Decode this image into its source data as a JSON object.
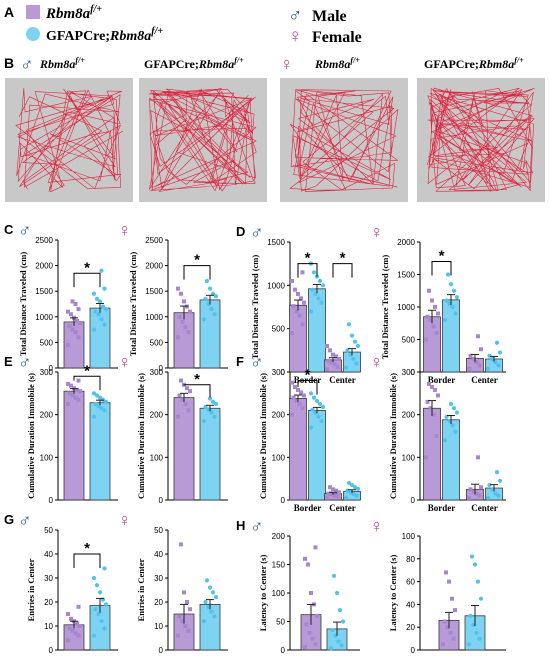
{
  "colors": {
    "rbm8a": "#b79ad6",
    "gfap": "#7ed3f2",
    "male": "#1f5d8c",
    "female": "#c04a9b",
    "track": "#e0223c",
    "arena": "#c8c8c8",
    "star": "#000000"
  },
  "legend": {
    "panel_label": "A",
    "group1": "Rbm8a",
    "group1_sup": "f/+",
    "group2_prefix": "GFAPCre;",
    "group2": "Rbm8a",
    "group2_sup": "f/+",
    "male_symbol": "♂",
    "male_label": "Male",
    "female_symbol": "♀",
    "female_label": "Female"
  },
  "panel_b": {
    "label": "B",
    "male_symbol": "♂",
    "female_symbol": "♀",
    "arenas": [
      {
        "title": "Rbm8a",
        "sup": "f/+",
        "prefix": ""
      },
      {
        "title": "Rbm8a",
        "sup": "f/+",
        "prefix": "GFAPCre;"
      },
      {
        "title": "Rbm8a",
        "sup": "f/+",
        "prefix": ""
      },
      {
        "title": "Rbm8a",
        "sup": "f/+",
        "prefix": "GFAPCre;"
      }
    ]
  },
  "chart_data": [
    {
      "id": "C1",
      "panel_label": "C",
      "sex": "male",
      "type": "bar",
      "ylabel": "Total Distance Traveled (cm)",
      "ylim": [
        0,
        2500
      ],
      "yticks": [
        "0",
        "500",
        "1000",
        "1500",
        "2000",
        "2500"
      ],
      "categories": [
        ""
      ],
      "series": [
        {
          "group": "rbm8a",
          "values": [
            900
          ],
          "error": [
            80
          ],
          "points": [
            [
              450,
              600,
              700,
              750,
              820,
              880,
              920,
              980,
              1050,
              1100,
              1150,
              1250,
              1300
            ]
          ]
        },
        {
          "group": "gfap",
          "values": [
            1170
          ],
          "error": [
            90
          ],
          "points": [
            [
              750,
              850,
              950,
              1050,
              1100,
              1150,
              1200,
              1300,
              1350,
              1450,
              1550,
              1900
            ]
          ]
        }
      ],
      "sig": [
        {
          "between": [
            0,
            1
          ],
          "category": 0,
          "y": 1850,
          "label": "*"
        }
      ]
    },
    {
      "id": "C2",
      "panel_label": "",
      "sex": "female",
      "type": "bar",
      "ylabel": "Total Distance Traveled (cm)",
      "ylim": [
        0,
        2500
      ],
      "yticks": [
        "0",
        "500",
        "1000",
        "1500",
        "2000",
        "2500"
      ],
      "categories": [
        ""
      ],
      "series": [
        {
          "group": "rbm8a",
          "values": [
            1080
          ],
          "error": [
            130
          ],
          "points": [
            [
              600,
              700,
              800,
              900,
              1000,
              1100,
              1200,
              1300,
              1450,
              1550
            ]
          ]
        },
        {
          "group": "gfap",
          "values": [
            1330
          ],
          "error": [
            90
          ],
          "points": [
            [
              950,
              1050,
              1150,
              1250,
              1350,
              1400,
              1450,
              1550,
              1700
            ]
          ]
        }
      ],
      "sig": [
        {
          "between": [
            0,
            1
          ],
          "category": 0,
          "y": 2000,
          "label": "*"
        }
      ]
    },
    {
      "id": "D1",
      "panel_label": "D",
      "sex": "male",
      "type": "bar",
      "ylabel": "Total Distance Traveled (cm)",
      "ylim": [
        0,
        1500
      ],
      "yticks": [
        "0",
        "500",
        "1000",
        "1500"
      ],
      "categories": [
        "Border",
        "Center"
      ],
      "series": [
        {
          "group": "rbm8a",
          "values": [
            770,
            140
          ],
          "error": [
            60,
            25
          ],
          "points": [
            [
              450,
              550,
              650,
              700,
              760,
              800,
              850,
              900,
              950,
              1050,
              1150
            ],
            [
              30,
              60,
              90,
              110,
              130,
              150,
              180,
              200,
              250,
              300
            ]
          ]
        },
        {
          "group": "gfap",
          "values": [
            960,
            230
          ],
          "error": [
            50,
            40
          ],
          "points": [
            [
              700,
              800,
              850,
              900,
              950,
              1000,
              1050,
              1100,
              1150,
              1250
            ],
            [
              50,
              100,
              150,
              200,
              250,
              300,
              350,
              420,
              550
            ]
          ]
        }
      ],
      "sig": [
        {
          "between": [
            0,
            1
          ],
          "category": 0,
          "y": 1250,
          "label": "*"
        },
        {
          "between": [
            0,
            1
          ],
          "category": 1,
          "y": 1250,
          "label": "*"
        }
      ]
    },
    {
      "id": "D2",
      "panel_label": "",
      "sex": "female",
      "type": "bar",
      "ylabel": "Total Distance Traveled (cm)",
      "ylim": [
        0,
        2000
      ],
      "yticks": [
        "0",
        "500",
        "1000",
        "1500",
        "2000"
      ],
      "categories": [
        "Border",
        "Center"
      ],
      "series": [
        {
          "group": "rbm8a",
          "values": [
            850,
            210
          ],
          "error": [
            100,
            60
          ],
          "points": [
            [
              500,
              600,
              700,
              800,
              850,
              900,
              1000,
              1100,
              1250
            ],
            [
              50,
              100,
              150,
              200,
              250,
              350,
              550
            ]
          ]
        },
        {
          "group": "gfap",
          "values": [
            1110,
            200
          ],
          "error": [
            80,
            40
          ],
          "points": [
            [
              800,
              900,
              1000,
              1050,
              1100,
              1150,
              1250,
              1350,
              1500
            ],
            [
              50,
              100,
              150,
              200,
              250,
              300,
              450
            ]
          ]
        }
      ],
      "sig": [
        {
          "between": [
            0,
            1
          ],
          "category": 0,
          "y": 1700,
          "label": "*"
        }
      ]
    },
    {
      "id": "E1",
      "panel_label": "E",
      "sex": "male",
      "type": "bar",
      "ylabel": "Cumulative Duration Immobile (s)",
      "ylim": [
        0,
        300
      ],
      "yticks": [
        "0",
        "100",
        "200",
        "300"
      ],
      "categories": [
        ""
      ],
      "series": [
        {
          "group": "rbm8a",
          "values": [
            255
          ],
          "error": [
            6
          ],
          "points": [
            [
              225,
              235,
              240,
              245,
              250,
              255,
              258,
              262,
              268,
              272,
              280
            ]
          ]
        },
        {
          "group": "gfap",
          "values": [
            228
          ],
          "error": [
            6
          ],
          "points": [
            [
              195,
              210,
              215,
              220,
              225,
              230,
              235,
              240,
              245,
              250
            ]
          ]
        }
      ],
      "sig": [
        {
          "between": [
            0,
            1
          ],
          "category": 0,
          "y": 290,
          "label": "*"
        }
      ]
    },
    {
      "id": "E2",
      "panel_label": "",
      "sex": "female",
      "type": "bar",
      "ylabel": "Cumulative Duration Immobile (s)",
      "ylim": [
        0,
        300
      ],
      "yticks": [
        "0",
        "100",
        "200",
        "300"
      ],
      "categories": [
        ""
      ],
      "series": [
        {
          "group": "rbm8a",
          "values": [
            240
          ],
          "error": [
            10
          ],
          "points": [
            [
              195,
              210,
              225,
              235,
              245,
              255,
              262,
              270,
              280
            ]
          ]
        },
        {
          "group": "gfap",
          "values": [
            215
          ],
          "error": [
            7
          ],
          "points": [
            [
              185,
              195,
              205,
              212,
              218,
              225,
              230,
              238
            ]
          ]
        }
      ],
      "sig": [
        {
          "between": [
            0,
            1
          ],
          "category": 0,
          "y": 270,
          "label": "*"
        }
      ]
    },
    {
      "id": "F1",
      "panel_label": "F",
      "sex": "male",
      "type": "bar",
      "ylabel": "Cumulative Duration Immobile (s)",
      "ylim": [
        0,
        300
      ],
      "yticks": [
        "0",
        "100",
        "200",
        "300"
      ],
      "categories": [
        "Border",
        "Center"
      ],
      "series": [
        {
          "group": "rbm8a",
          "values": [
            238,
            15
          ],
          "error": [
            8,
            3
          ],
          "points": [
            [
              200,
              215,
              225,
              232,
              240,
              245,
              252,
              258,
              265,
              275
            ],
            [
              5,
              8,
              10,
              13,
              15,
              18,
              22,
              25,
              30
            ]
          ]
        },
        {
          "group": "gfap",
          "values": [
            210,
            20
          ],
          "error": [
            7,
            4
          ],
          "points": [
            [
              170,
              185,
              195,
              205,
              212,
              218,
              225,
              232,
              240,
              250
            ],
            [
              5,
              10,
              14,
              18,
              22,
              26,
              30,
              35,
              40
            ]
          ]
        }
      ],
      "sig": [
        {
          "between": [
            0,
            1
          ],
          "category": 0,
          "y": 280,
          "label": "*"
        }
      ]
    },
    {
      "id": "F2",
      "panel_label": "",
      "sex": "female",
      "type": "bar",
      "ylabel": "Cumulative Duration Immobile (s)",
      "ylim": [
        0,
        300
      ],
      "yticks": [
        "0",
        "100",
        "200",
        "300"
      ],
      "categories": [
        "Border",
        "Center"
      ],
      "series": [
        {
          "group": "rbm8a",
          "values": [
            215,
            25
          ],
          "error": [
            18,
            12
          ],
          "points": [
            [
              100,
              150,
              200,
              215,
              230,
              245,
              258,
              265,
              272
            ],
            [
              5,
              10,
              15,
              20,
              25,
              30,
              100
            ]
          ]
        },
        {
          "group": "gfap",
          "values": [
            188,
            28
          ],
          "error": [
            10,
            8
          ],
          "points": [
            [
              140,
              160,
              175,
              185,
              195,
              205,
              215,
              225
            ],
            [
              5,
              10,
              15,
              25,
              35,
              45,
              65
            ]
          ]
        }
      ],
      "sig": []
    },
    {
      "id": "G1",
      "panel_label": "G",
      "sex": "male",
      "type": "bar",
      "ylabel": "Entries in Center",
      "ylim": [
        0,
        50
      ],
      "yticks": [
        "0",
        "10",
        "20",
        "30",
        "40",
        "50"
      ],
      "categories": [
        ""
      ],
      "series": [
        {
          "group": "rbm8a",
          "values": [
            10.5
          ],
          "error": [
            1.5
          ],
          "points": [
            [
              4,
              6,
              7,
              8,
              9,
              10,
              11,
              12,
              13,
              15,
              18
            ]
          ]
        },
        {
          "group": "gfap",
          "values": [
            18.5
          ],
          "error": [
            3
          ],
          "points": [
            [
              6,
              9,
              12,
              15,
              17,
              19,
              21,
              24,
              27,
              30,
              34
            ]
          ]
        }
      ],
      "sig": [
        {
          "between": [
            0,
            1
          ],
          "category": 0,
          "y": 40,
          "label": "*"
        }
      ]
    },
    {
      "id": "G2",
      "panel_label": "",
      "sex": "female",
      "type": "bar",
      "ylabel": "Entries in Center",
      "ylim": [
        0,
        50
      ],
      "yticks": [
        "0",
        "10",
        "20",
        "30",
        "40",
        "50"
      ],
      "categories": [
        ""
      ],
      "series": [
        {
          "group": "rbm8a",
          "values": [
            15
          ],
          "error": [
            4
          ],
          "points": [
            [
              6,
              8,
              10,
              12,
              14,
              17,
              20,
              24,
              44
            ]
          ]
        },
        {
          "group": "gfap",
          "values": [
            19
          ],
          "error": [
            2
          ],
          "points": [
            [
              12,
              14,
              16,
              18,
              20,
              22,
              24,
              26,
              29
            ]
          ]
        }
      ],
      "sig": []
    },
    {
      "id": "H1",
      "panel_label": "H",
      "sex": "male",
      "type": "bar",
      "ylabel": "Latency to Center (s)",
      "ylim": [
        0,
        200
      ],
      "yticks": [
        "0",
        "50",
        "100",
        "150",
        "200"
      ],
      "categories": [
        ""
      ],
      "series": [
        {
          "group": "rbm8a",
          "values": [
            62
          ],
          "error": [
            18
          ],
          "points": [
            [
              5,
              10,
              20,
              30,
              45,
              60,
              80,
              100,
              150,
              160,
              180
            ]
          ]
        },
        {
          "group": "gfap",
          "values": [
            37
          ],
          "error": [
            12
          ],
          "points": [
            [
              3,
              8,
              15,
              25,
              35,
              50,
              70,
              100,
              130
            ]
          ]
        }
      ],
      "sig": []
    },
    {
      "id": "H2",
      "panel_label": "",
      "sex": "female",
      "type": "bar",
      "ylabel": "Latency to Center (s)",
      "ylim": [
        0,
        100
      ],
      "yticks": [
        "0",
        "20",
        "40",
        "60",
        "80",
        "100"
      ],
      "categories": [
        ""
      ],
      "series": [
        {
          "group": "rbm8a",
          "values": [
            26
          ],
          "error": [
            7
          ],
          "points": [
            [
              5,
              10,
              15,
              20,
              25,
              35,
              45,
              60,
              68
            ]
          ]
        },
        {
          "group": "gfap",
          "values": [
            30
          ],
          "error": [
            9
          ],
          "points": [
            [
              5,
              10,
              15,
              22,
              30,
              45,
              60,
              75,
              82
            ]
          ]
        }
      ],
      "sig": []
    }
  ]
}
